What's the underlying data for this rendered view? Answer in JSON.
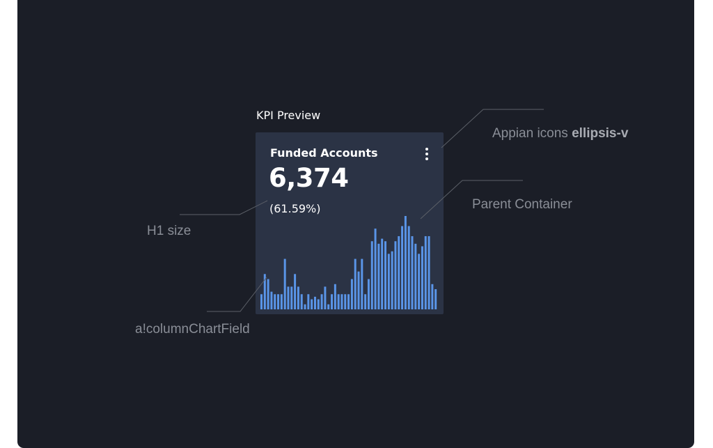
{
  "preview_label": "KPI Preview",
  "card": {
    "title": "Funded Accounts",
    "value": "6,374",
    "percent": "(61.59%)",
    "menu_icon": "ellipsis-v-icon"
  },
  "chart_data": {
    "type": "bar",
    "values": [
      6,
      14,
      12,
      7,
      6,
      6,
      6,
      20,
      9,
      9,
      14,
      9,
      6,
      2,
      6,
      4,
      5,
      4,
      6,
      9,
      2,
      6,
      10,
      6,
      6,
      6,
      6,
      12,
      20,
      15,
      20,
      6,
      12,
      27,
      32,
      26,
      28,
      27,
      22,
      23,
      27,
      29,
      33,
      37,
      33,
      29,
      26,
      22,
      25,
      29,
      29,
      10,
      8
    ],
    "bar_color": "#5a95e8"
  },
  "annotations": {
    "icons_prefix": "Appian icons",
    "icons_name": "ellipsis-v",
    "parent": "Parent Container",
    "h1": "H1 size",
    "chart_field": "a!columnChartField"
  },
  "colors": {
    "background": "#1b1e27",
    "card": "#2b3345",
    "annotation": "#8a8e97"
  }
}
